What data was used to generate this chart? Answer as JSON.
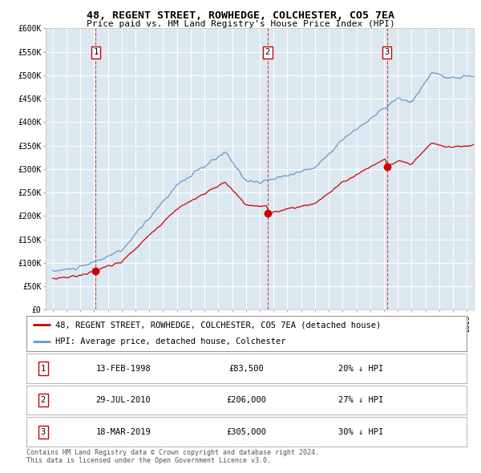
{
  "title": "48, REGENT STREET, ROWHEDGE, COLCHESTER, CO5 7EA",
  "subtitle": "Price paid vs. HM Land Registry's House Price Index (HPI)",
  "background_color": "#dce8f0",
  "plot_bg_color": "#dce8f0",
  "red_line_color": "#cc0000",
  "blue_line_color": "#6699cc",
  "red_dot_color": "#cc0000",
  "dashed_line_color": "#cc3333",
  "ylim": [
    0,
    600000
  ],
  "yticks": [
    0,
    50000,
    100000,
    150000,
    200000,
    250000,
    300000,
    350000,
    400000,
    450000,
    500000,
    550000,
    600000
  ],
  "purchases": [
    {
      "date_num": 1998.12,
      "price": 83500,
      "label": "1"
    },
    {
      "date_num": 2010.57,
      "price": 206000,
      "label": "2"
    },
    {
      "date_num": 2019.21,
      "price": 305000,
      "label": "3"
    }
  ],
  "legend_entries": [
    {
      "label": "48, REGENT STREET, ROWHEDGE, COLCHESTER, CO5 7EA (detached house)",
      "color": "#cc0000"
    },
    {
      "label": "HPI: Average price, detached house, Colchester",
      "color": "#6699cc"
    }
  ],
  "table_rows": [
    {
      "num": "1",
      "date": "13-FEB-1998",
      "price": "£83,500",
      "hpi": "20% ↓ HPI"
    },
    {
      "num": "2",
      "date": "29-JUL-2010",
      "price": "£206,000",
      "hpi": "27% ↓ HPI"
    },
    {
      "num": "3",
      "date": "18-MAR-2019",
      "price": "£305,000",
      "hpi": "30% ↓ HPI"
    }
  ],
  "footer": "Contains HM Land Registry data © Crown copyright and database right 2024.\nThis data is licensed under the Open Government Licence v3.0.",
  "xmin": 1994.5,
  "xmax": 2025.5
}
